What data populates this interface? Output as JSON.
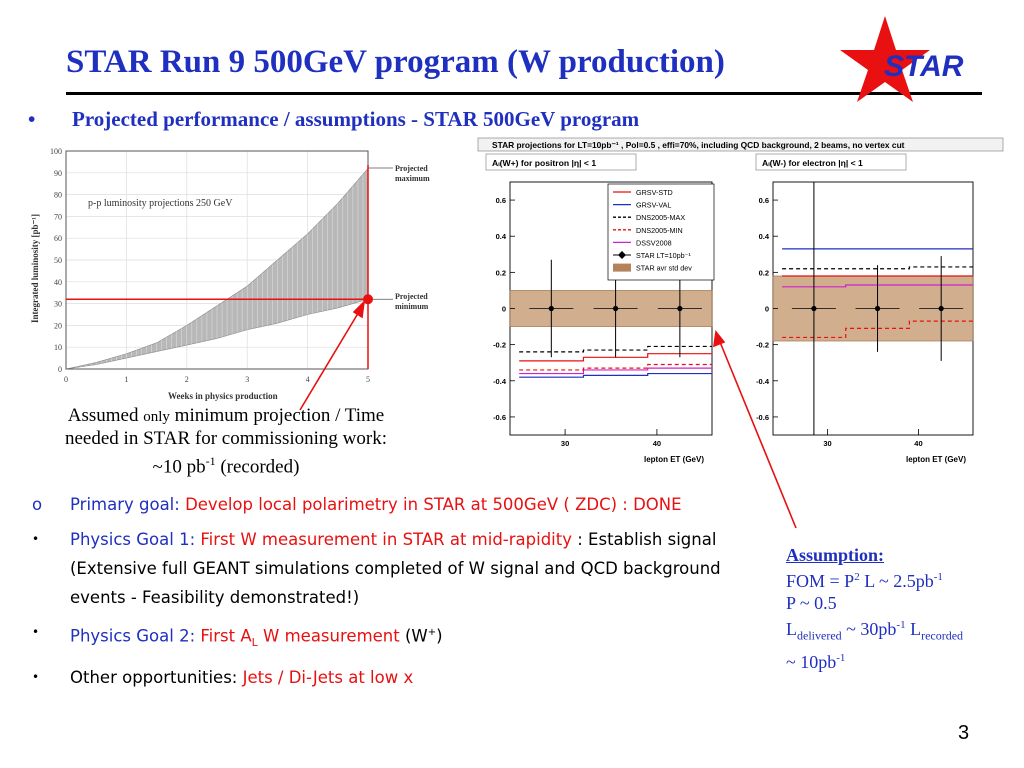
{
  "title": "STAR Run 9 500GeV program (W production)",
  "logo_text": "STAR",
  "subtitle_bullet": "•",
  "subtitle": "Projected performance / assumptions - STAR 500GeV program",
  "lumi_plot": {
    "inner_label": "p-p luminosity projections 250 GeV",
    "ylabel": "Integrated luminosity [pb⁻¹]",
    "xlabel": "Weeks in physics production",
    "annot_max_1": "Projected",
    "annot_max_2": "maximum",
    "annot_min_1": "Projected",
    "annot_min_2": "minimum",
    "marker_y": 32,
    "marker_x": 5,
    "colors": {
      "band": "#b8b8b8",
      "line": "#e81010"
    }
  },
  "chart_data": {
    "type": "area",
    "xlabel": "Weeks in physics production",
    "ylabel": "Integrated luminosity [pb⁻¹]",
    "xlim": [
      0,
      5
    ],
    "ylim": [
      0,
      100
    ],
    "xticks": [
      "0",
      "1",
      "2",
      "3",
      "4",
      "5"
    ],
    "yticks": [
      "0",
      "10",
      "20",
      "30",
      "40",
      "50",
      "60",
      "70",
      "80",
      "90",
      "100"
    ],
    "series": [
      {
        "name": "Projected maximum",
        "x": [
          0,
          0.5,
          1,
          1.5,
          2,
          2.5,
          3,
          3.5,
          4,
          4.5,
          5
        ],
        "values": [
          0,
          3,
          7,
          12,
          20,
          29,
          38,
          50,
          62,
          76,
          92
        ]
      },
      {
        "name": "Projected minimum",
        "x": [
          0,
          0.5,
          1,
          1.5,
          2,
          2.5,
          3,
          3.5,
          4,
          4.5,
          5
        ],
        "values": [
          0,
          2,
          5,
          8,
          11,
          14,
          18,
          21,
          25,
          28,
          32
        ]
      }
    ],
    "grid": true
  },
  "asym_plots": {
    "header": "STAR projections for LT=10pb⁻¹ ,  Pol=0.5 , effi=70%,  including QCD background, 2 beams, no vertex cut",
    "left_label": "Aₗ(W+)  for positron  |η| < 1",
    "right_label": "Aₗ(W-)  for electron  |η| < 1",
    "xlabel": "lepton ET (GeV)",
    "xticks": [
      "30",
      "40"
    ],
    "yticks": [
      "0.6",
      "0.4",
      "0.2",
      "0",
      "-0.2",
      "-0.4",
      "-0.6"
    ],
    "legend": [
      {
        "name": "GRSV-STD",
        "color": "#e81010",
        "style": "solid"
      },
      {
        "name": "GRSV-VAL",
        "color": "#1f2fbf",
        "style": "solid"
      },
      {
        "name": "DNS2005-MAX",
        "color": "#000000",
        "style": "dashed"
      },
      {
        "name": "DNS2005-MIN",
        "color": "#e81010",
        "style": "dashed"
      },
      {
        "name": "DSSV2008",
        "color": "#d020d0",
        "style": "solid"
      },
      {
        "name": "STAR LT=10pb⁻¹",
        "color": "#000000",
        "style": "marker"
      },
      {
        "name": "STAR avr std dev",
        "color": "#b5835a",
        "style": "box"
      }
    ],
    "left_curves": [
      {
        "color": "#1f2fbf",
        "dash": "",
        "values": [
          -0.38,
          -0.37,
          -0.36
        ]
      },
      {
        "color": "#d020d0",
        "dash": "",
        "values": [
          -0.36,
          -0.34,
          -0.33
        ]
      },
      {
        "color": "#e81010",
        "dash": "",
        "values": [
          -0.29,
          -0.27,
          -0.25
        ]
      },
      {
        "color": "#e81010",
        "dash": "4,3",
        "values": [
          -0.34,
          -0.33,
          -0.31
        ]
      },
      {
        "color": "#000000",
        "dash": "4,3",
        "values": [
          -0.24,
          -0.23,
          -0.21
        ]
      }
    ],
    "right_curves": [
      {
        "color": "#1f2fbf",
        "dash": "",
        "values": [
          0.33,
          0.33,
          0.33
        ]
      },
      {
        "color": "#000000",
        "dash": "4,3",
        "values": [
          0.22,
          0.22,
          0.23
        ]
      },
      {
        "color": "#e81010",
        "dash": "",
        "values": [
          0.18,
          0.18,
          0.18
        ]
      },
      {
        "color": "#d020d0",
        "dash": "",
        "values": [
          0.12,
          0.13,
          0.13
        ]
      },
      {
        "color": "#e81010",
        "dash": "4,3",
        "values": [
          -0.16,
          -0.11,
          -0.07
        ]
      }
    ],
    "left_points": [
      {
        "x": 28.5,
        "y": 0,
        "err": 0.27
      },
      {
        "x": 35.5,
        "y": 0,
        "err": 0.27
      },
      {
        "x": 42.5,
        "y": 0,
        "err": 0.27
      }
    ],
    "right_points": [
      {
        "x": 28.5,
        "y": 0,
        "err": 0.7
      },
      {
        "x": 35.5,
        "y": 0,
        "err": 0.24
      },
      {
        "x": 42.5,
        "y": 0,
        "err": 0.29
      }
    ],
    "band_left": [
      -0.1,
      0.1
    ],
    "band_right": [
      -0.18,
      0.18
    ]
  },
  "caption": {
    "line1_a": "Assumed ",
    "line1_b": "only",
    "line1_c": " minimum projection / Time",
    "line2": "needed in STAR for commissioning work:",
    "line3_a": "~10 pb",
    "line3_sup": "-1",
    "line3_b": " (recorded)"
  },
  "bullets": {
    "b1_marker": "o",
    "b1_a": "Primary goal: ",
    "b1_b": "Develop local polarimetry in STAR at 500GeV ( ZDC) : DONE",
    "b2_marker": "•",
    "b2_a": "Physics Goal 1: ",
    "b2_b": "First W measurement in STAR at mid-rapidity",
    "b2_c": " : Establish signal (Extensive full GEANT simulations completed of W signal and QCD background events - Feasibility demonstrated!)",
    "b3_marker": "•",
    "b3_a": "Physics Goal 2: ",
    "b3_b": "First A",
    "b3_sub": "L",
    "b3_c": " W measurement",
    "b3_d": " (W",
    "b3_sup": "+",
    "b3_e": ")",
    "b4_marker": "•",
    "b4_a": "Other opportunities: ",
    "b4_b": "Jets / Di-Jets at low x"
  },
  "assumption": {
    "head": "Assumption:",
    "l1_a": "FOM = P",
    "l1_sup": "2",
    "l1_b": " L ~ 2.5pb",
    "l1_sup2": "-1",
    "l2": "P ~ 0.5",
    "l3_a": "L",
    "l3_sub": "delivered",
    "l3_b": " ~ 30pb",
    "l3_sup": "-1",
    "l3_c": " L",
    "l3_sub2": "recorded",
    "l4_a": "~ 10pb",
    "l4_sup": "-1"
  },
  "page_number": "3"
}
